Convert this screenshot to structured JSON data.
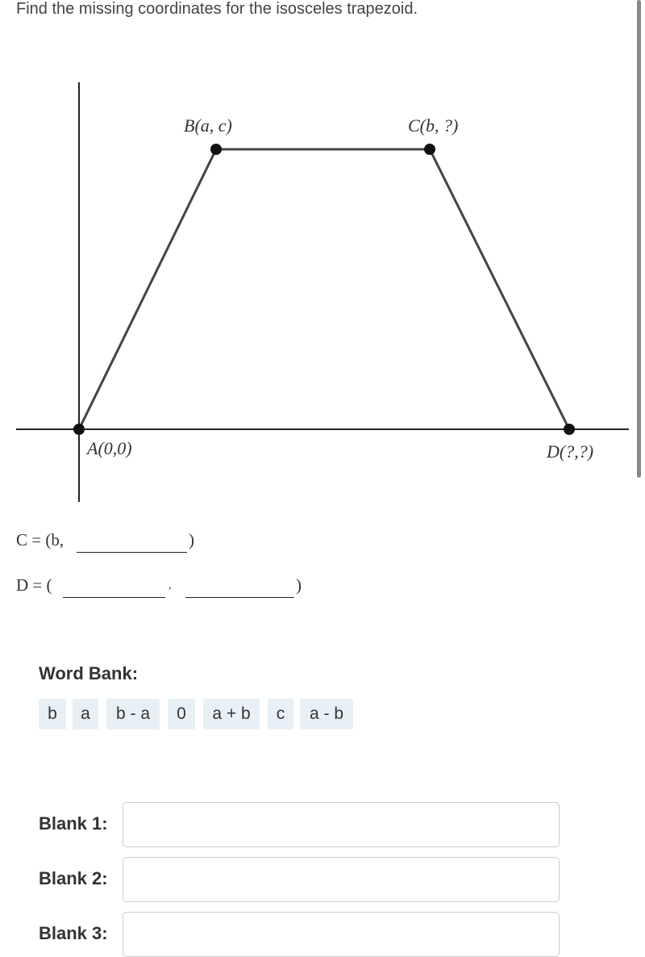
{
  "question": "Find the missing coordinates for the isosceles trapezoid.",
  "diagram": {
    "points": [
      {
        "label": "A(0,0)"
      },
      {
        "label": "B(a, c)"
      },
      {
        "label": "C(b, ?)"
      },
      {
        "label": "D(?,?)"
      }
    ]
  },
  "equations": [
    {
      "prefix": "C = (b,",
      "suffix": ")"
    },
    {
      "prefix": "D = (",
      "separator": ",",
      "suffix": ")"
    }
  ],
  "word_bank": {
    "label": "Word Bank:",
    "words": [
      "b",
      "a",
      "b - a",
      "0",
      "a + b",
      "c",
      "a - b"
    ]
  },
  "blanks": [
    {
      "label": "Blank 1:"
    },
    {
      "label": "Blank 2:"
    },
    {
      "label": "Blank 3:"
    }
  ]
}
